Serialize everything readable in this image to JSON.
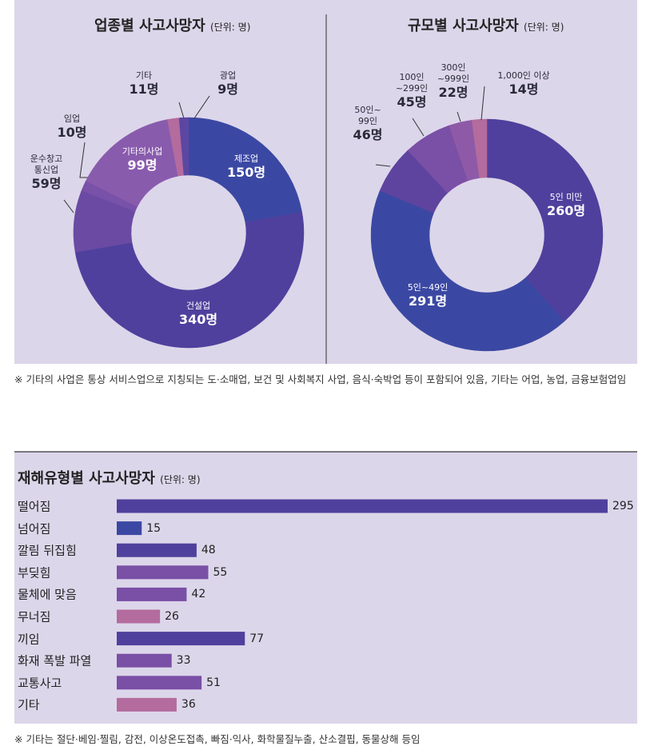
{
  "chart_data": [
    {
      "type": "donut",
      "title": "업종별 사고사망자",
      "subtitle": "(단위: 명)",
      "categories": [
        "제조업",
        "건설업",
        "운수창고\n통신업",
        "임업",
        "기타의사업",
        "기타",
        "광업"
      ],
      "values": [
        150,
        340,
        59,
        10,
        99,
        11,
        9
      ],
      "value_labels": [
        "150명",
        "340명",
        "59명",
        "10명",
        "99명",
        "11명",
        "9명"
      ],
      "colors": [
        "#3b48a3",
        "#4f409d",
        "#6a4aa3",
        "#7851a8",
        "#895bad",
        "#b46b9e",
        "#5b47a1"
      ]
    },
    {
      "type": "donut",
      "title": "규모별 사고사망자",
      "subtitle": "(단위: 명)",
      "categories": [
        "5인 미만",
        "5인~49인",
        "50인~\n99인",
        "100인\n~299인",
        "300인\n~999인",
        "1,000인 이상"
      ],
      "values": [
        260,
        291,
        46,
        45,
        22,
        14
      ],
      "value_labels": [
        "260명",
        "291명",
        "46명",
        "45명",
        "22명",
        "14명"
      ],
      "colors": [
        "#4f409d",
        "#3b48a3",
        "#5e449f",
        "#7a4fa6",
        "#8e5aa8",
        "#b46b9e"
      ]
    },
    {
      "type": "hbar",
      "title": "재해유형별 사고사망자",
      "subtitle": "(단위: 명)",
      "categories": [
        "떨어짐",
        "넘어짐",
        "깔림 뒤집힘",
        "부딪힘",
        "물체에 맞음",
        "무너짐",
        "끼임",
        "화재 폭발 파열",
        "교통사고",
        "기타"
      ],
      "values": [
        295,
        15,
        48,
        55,
        42,
        26,
        77,
        33,
        51,
        36
      ],
      "colors": [
        "#4f409d",
        "#3b48a3",
        "#4f409d",
        "#7a4fa6",
        "#7a4fa6",
        "#b46b9e",
        "#4f409d",
        "#7a4fa6",
        "#7a4fa6",
        "#b46b9e"
      ]
    }
  ],
  "notes": [
    "※ 기타의 사업은 통상 서비스업으로 지칭되는 도·소매업, 보건 및 사회복지 사업, 음식·숙박업 등이 포함되어 있음, 기타는 어업, 농업, 금융보험업임",
    "※ 기타는 절단·베임·찔림, 감전, 이상온도접촉, 빠짐·익사, 화학물질누출, 산소결핍, 동물상해 등임"
  ]
}
